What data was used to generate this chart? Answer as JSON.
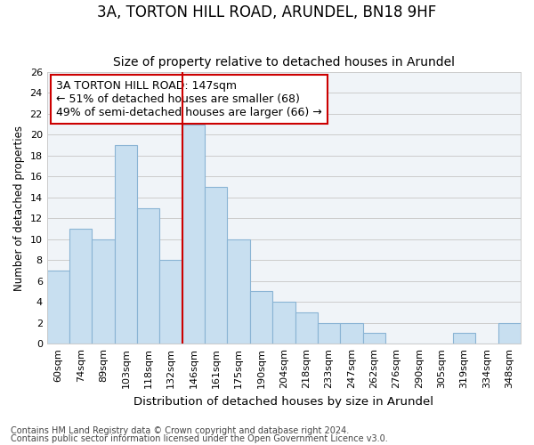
{
  "title": "3A, TORTON HILL ROAD, ARUNDEL, BN18 9HF",
  "subtitle": "Size of property relative to detached houses in Arundel",
  "xlabel": "Distribution of detached houses by size in Arundel",
  "ylabel": "Number of detached properties",
  "footnote1": "Contains HM Land Registry data © Crown copyright and database right 2024.",
  "footnote2": "Contains public sector information licensed under the Open Government Licence v3.0.",
  "categories": [
    "60sqm",
    "74sqm",
    "89sqm",
    "103sqm",
    "118sqm",
    "132sqm",
    "146sqm",
    "161sqm",
    "175sqm",
    "190sqm",
    "204sqm",
    "218sqm",
    "233sqm",
    "247sqm",
    "262sqm",
    "276sqm",
    "290sqm",
    "305sqm",
    "319sqm",
    "334sqm",
    "348sqm"
  ],
  "values": [
    7,
    11,
    10,
    19,
    13,
    8,
    21,
    15,
    10,
    5,
    4,
    3,
    2,
    2,
    1,
    0,
    0,
    0,
    1,
    0,
    2
  ],
  "highlight_index": 6,
  "bar_fill_color": "#c8dff0",
  "bar_edge_color": "#8ab4d4",
  "highlight_line_color": "#cc0000",
  "annotation_box_edge_color": "#cc0000",
  "annotation_line1": "3A TORTON HILL ROAD: 147sqm",
  "annotation_line2": "← 51% of detached houses are smaller (68)",
  "annotation_line3": "49% of semi-detached houses are larger (66) →",
  "ylim": [
    0,
    26
  ],
  "yticks": [
    0,
    2,
    4,
    6,
    8,
    10,
    12,
    14,
    16,
    18,
    20,
    22,
    24,
    26
  ],
  "grid_color": "#cccccc",
  "background_color": "#ffffff",
  "plot_bg_color": "#f0f4f8",
  "title_fontsize": 12,
  "subtitle_fontsize": 10,
  "annotation_fontsize": 9,
  "ylabel_fontsize": 8.5,
  "xlabel_fontsize": 9.5,
  "tick_fontsize": 8,
  "footnote_fontsize": 7
}
